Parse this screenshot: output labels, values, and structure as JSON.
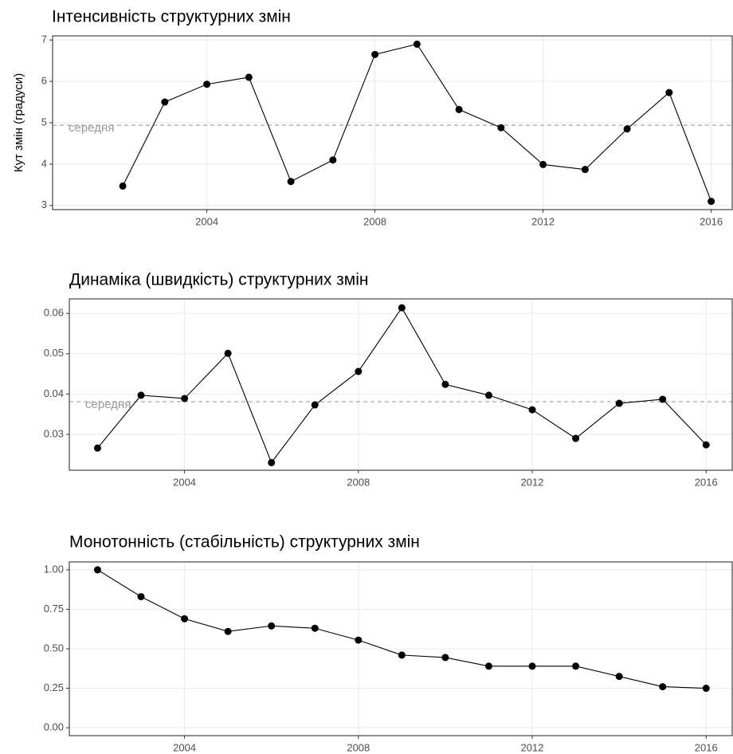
{
  "chart_data": [
    {
      "type": "line",
      "title": "Інтенсивність структурних змін",
      "y_label": "Кут змін (градуси)",
      "x": [
        2002,
        2003,
        2004,
        2005,
        2006,
        2007,
        2008,
        2009,
        2010,
        2011,
        2012,
        2013,
        2014,
        2015,
        2016
      ],
      "values": [
        3.47,
        5.5,
        5.93,
        6.1,
        3.58,
        4.1,
        6.65,
        6.9,
        5.32,
        4.88,
        3.99,
        3.87,
        4.85,
        5.73,
        3.1
      ],
      "color": "#000000",
      "xlim": [
        2000.33,
        2016.5
      ],
      "xticks": [
        2004,
        2008,
        2012,
        2016
      ],
      "ylim": [
        2.9,
        7.1
      ],
      "yticks": [
        3,
        4,
        5,
        6,
        7
      ],
      "grid": true,
      "hline": {
        "value": 4.94,
        "label": "середня"
      }
    },
    {
      "type": "line",
      "title": "Динаміка (швидкість) структурних змін",
      "x": [
        2002,
        2003,
        2004,
        2005,
        2006,
        2007,
        2008,
        2009,
        2010,
        2011,
        2012,
        2013,
        2014,
        2015,
        2016
      ],
      "values": [
        0.0266,
        0.0397,
        0.0389,
        0.0501,
        0.023,
        0.0373,
        0.0456,
        0.0614,
        0.0424,
        0.0397,
        0.0361,
        0.029,
        0.0377,
        0.0387,
        0.0274
      ],
      "color": "#000000",
      "xlim": [
        2001.35,
        2016.6
      ],
      "xticks": [
        2004,
        2008,
        2012,
        2016
      ],
      "ylim": [
        0.0211,
        0.0636
      ],
      "yticks": [
        0.03,
        0.04,
        0.05,
        0.06
      ],
      "grid": true,
      "hline": {
        "value": 0.0381,
        "label": "середня"
      }
    },
    {
      "type": "line",
      "title": "Монотонність (стабільність) структурних змін",
      "x": [
        2002,
        2003,
        2004,
        2005,
        2006,
        2007,
        2008,
        2009,
        2010,
        2011,
        2012,
        2013,
        2014,
        2015,
        2016
      ],
      "values": [
        1.0,
        0.83,
        0.69,
        0.61,
        0.645,
        0.63,
        0.555,
        0.46,
        0.445,
        0.39,
        0.39,
        0.39,
        0.325,
        0.26,
        0.25
      ],
      "color": "#000000",
      "xlim": [
        2001.35,
        2016.6
      ],
      "xticks": [
        2004,
        2008,
        2012,
        2016
      ],
      "ylim": [
        -0.05,
        1.05
      ],
      "yticks": [
        {
          "value": 0,
          "label": "0.00"
        },
        {
          "value": 0.25,
          "label": "0.25"
        },
        {
          "value": 0.5,
          "label": "0.50"
        },
        {
          "value": 0.75,
          "label": "0.75"
        },
        {
          "value": 1,
          "label": "1.00"
        }
      ],
      "grid": true
    }
  ]
}
